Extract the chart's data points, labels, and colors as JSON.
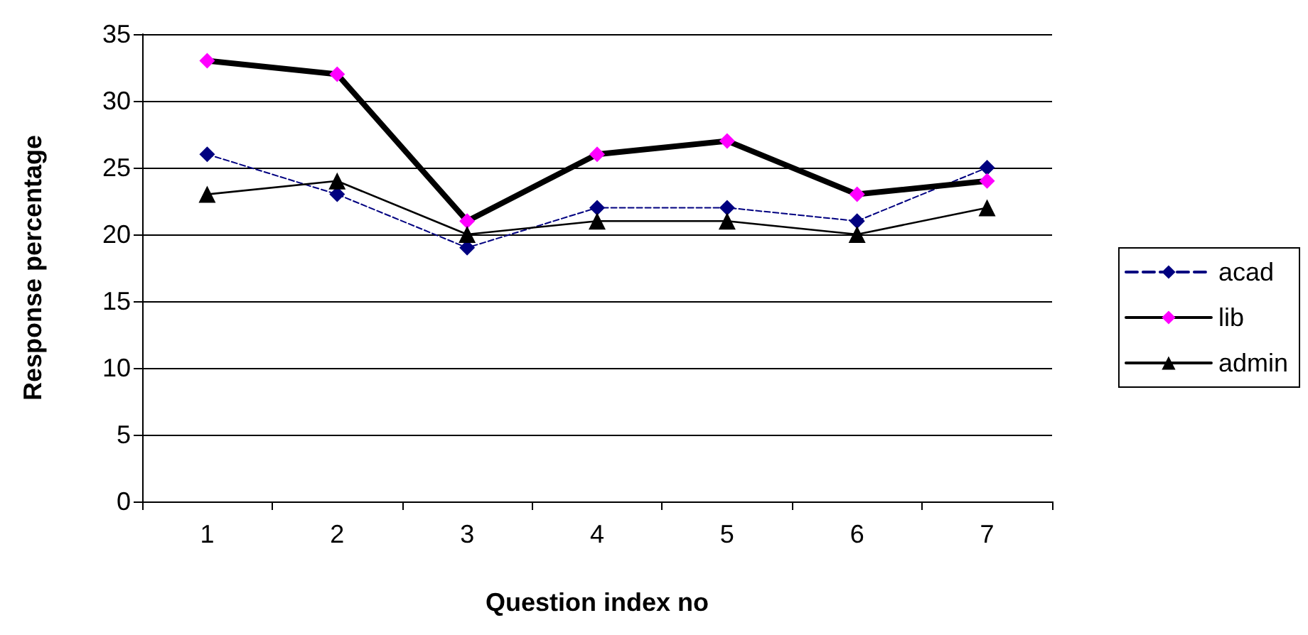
{
  "chart_data": {
    "type": "line",
    "xlabel": "Question index no",
    "ylabel": "Response percentage",
    "categories": [
      "1",
      "2",
      "3",
      "4",
      "5",
      "6",
      "7"
    ],
    "series": [
      {
        "name": "acad",
        "color": "#000080",
        "values": [
          26,
          23,
          19,
          22,
          22,
          21,
          25
        ],
        "marker": "diamond",
        "line_style": "dashed"
      },
      {
        "name": "lib",
        "color": "#ff00ff",
        "values": [
          33,
          32,
          21,
          26,
          27,
          23,
          24
        ],
        "marker": "diamond",
        "line_style": "solid"
      },
      {
        "name": "admin",
        "color": "#000000",
        "values": [
          23,
          24,
          20,
          21,
          21,
          20,
          22
        ],
        "marker": "triangle",
        "line_style": "solid"
      }
    ],
    "ylim": [
      0,
      35
    ],
    "yticks": [
      0,
      5,
      10,
      15,
      20,
      25,
      30,
      35
    ],
    "grid": "y",
    "legend": "right"
  }
}
